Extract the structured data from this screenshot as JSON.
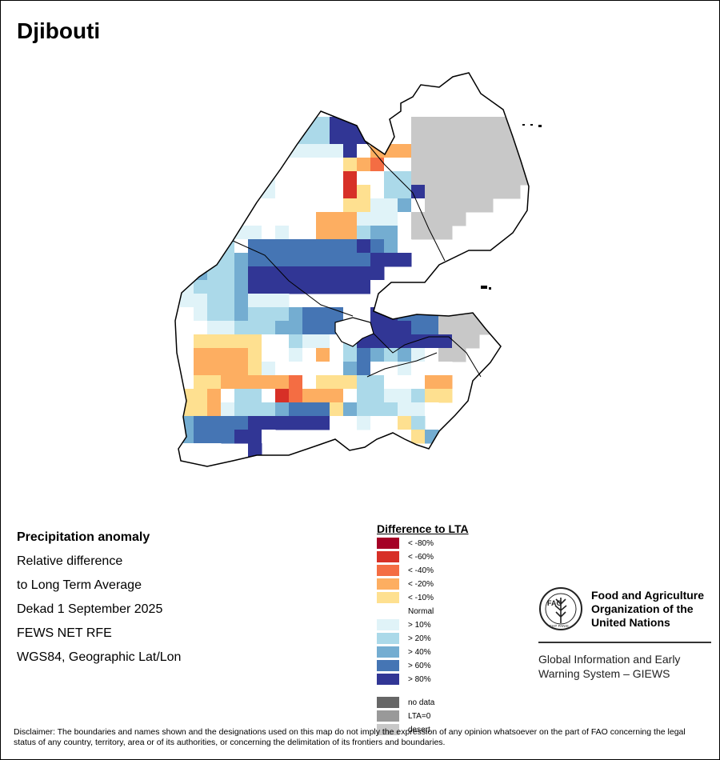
{
  "header": {
    "title": "Djibouti"
  },
  "info": {
    "lines": [
      "Precipitation anomaly",
      "Relative difference",
      "to Long Term Average",
      "Dekad 1 September 2025",
      "FEWS NET RFE",
      "WGS84, Geographic Lat/Lon"
    ]
  },
  "legend": {
    "title": "Difference to LTA",
    "items": [
      {
        "label": "< -80%",
        "color": "#a50026"
      },
      {
        "label": "< -60%",
        "color": "#d73027"
      },
      {
        "label": "< -40%",
        "color": "#f46d43"
      },
      {
        "label": "< -20%",
        "color": "#fdae61"
      },
      {
        "label": "< -10%",
        "color": "#fee090"
      },
      {
        "label": "Normal",
        "color": "#ffffff"
      },
      {
        "label": "> 10%",
        "color": "#e0f3f8"
      },
      {
        "label": "> 20%",
        "color": "#abd9e9"
      },
      {
        "label": "> 40%",
        "color": "#74add1"
      },
      {
        "label": "> 60%",
        "color": "#4575b4"
      },
      {
        "label": "> 80%",
        "color": "#313695"
      }
    ],
    "extra": [
      {
        "label": "no data",
        "color": "#666666"
      },
      {
        "label": "LTA=0",
        "color": "#999999"
      },
      {
        "label": "desert",
        "color": "#c8c8c8"
      }
    ]
  },
  "fao": {
    "emblem_text": "FAO",
    "motto": "FIAT PANIS",
    "name_lines": [
      "Food and Agriculture",
      "Organization of the",
      "United Nations"
    ],
    "system_lines": [
      "Global Information and Early",
      "Warning System – GIEWS"
    ]
  },
  "disclaimer": "Disclaimer: The boundaries and names shown and the designations used on this map do not imply the expression of any opinion whatsoever on the part of FAO concerning the legal status of any country, territory, area or of its authorities, or concerning the delimitation of its frontiers and boundaries.",
  "grid": {
    "legend_codes": {
      "D": "desert",
      "N": "Normal",
      "a": "> 10%",
      "b": "> 20%",
      "c": "> 40%",
      "d": "> 60%",
      "e": "> 80%",
      "y": "< -10%",
      "o": "< -20%",
      "r": "< -40%",
      "R": "< -60%"
    },
    "rows": [
      "...........bbeeeNNNDDDDDDDDD..",
      "..........bbbeeeNNNDDDDDDDDD..",
      "..........aaaaeNoooDDDDDDDDD..",
      "........NNNNNNyorNNDDDDDDDDD..",
      "........aNNNNNRNNbbDDDDDDDDD..",
      "........aNNNNNRyNbbeDDDDDDD...",
      "........NNNNNNyyaacNDDDDD.....",
      "......NNNNNNoooaaaNDDDD.......",
      "....aaaaNaNNooobccNDDD........",
      "...bbbNddddddddedcN...........",
      "..cbbbcdddddddddeee...........",
      "..acbbceeeeeeeeee.............",
      "..abbbceeeeeeeeeN.............",
      "..aabbcaaa......N....DDDD.....",
      "..NabbcbbbcdddNNeedddDDDD.....",
      "..NNaabbbccdddNNeeeddDDDD.....",
      "..NyyyyyNNbaaNbeeeeeeeDD......",
      "..NooooyNNaNoNbdcbcaNDD.......",
      "..NooooyaNNNNNcdNNaNNN........",
      "..NyyooooorNyyybbNNNoo........",
      "..yyoNbbNRroooNbbaabyy........",
      "..yyoabbbcdddycbbbaaN.........",
      "..cddddeeeeeeNNaNNyb..........",
      "..cdddeeN.........Nyc.........",
      "..NNN..e......................"
    ]
  }
}
